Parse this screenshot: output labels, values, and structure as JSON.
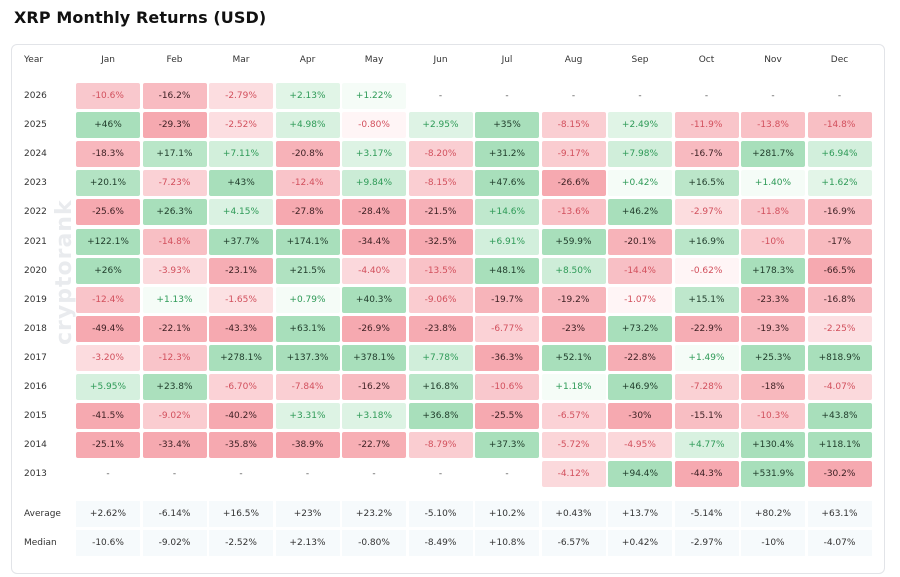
{
  "title": "XRP Monthly Returns (USD)",
  "watermark": "cryptorank",
  "header": {
    "year_label": "Year",
    "months": [
      "Jan",
      "Feb",
      "Mar",
      "Apr",
      "May",
      "Jun",
      "Jul",
      "Aug",
      "Sep",
      "Oct",
      "Nov",
      "Dec"
    ]
  },
  "colors": {
    "pos_strong": "#a8dfbb",
    "pos_weak": "#eaf8ee",
    "neg_strong": "#f6a9b0",
    "neg_weak": "#fde8ea",
    "pos_text": "#2e9a57",
    "neg_text": "#d2505d"
  },
  "chart_data": {
    "type": "heatmap",
    "title": "XRP Monthly Returns (USD)",
    "columns": [
      "Jan",
      "Feb",
      "Mar",
      "Apr",
      "May",
      "Jun",
      "Jul",
      "Aug",
      "Sep",
      "Oct",
      "Nov",
      "Dec"
    ],
    "rows": [
      {
        "year": "2026",
        "values": [
          "-10.6%",
          "-16.2%",
          "-2.79%",
          "+2.13%",
          "+1.22%",
          "-",
          "-",
          "-",
          "-",
          "-",
          "-",
          "-"
        ]
      },
      {
        "year": "2025",
        "values": [
          "+46%",
          "-29.3%",
          "-2.52%",
          "+4.98%",
          "-0.80%",
          "+2.95%",
          "+35%",
          "-8.15%",
          "+2.49%",
          "-11.9%",
          "-13.8%",
          "-14.8%"
        ]
      },
      {
        "year": "2024",
        "values": [
          "-18.3%",
          "+17.1%",
          "+7.11%",
          "-20.8%",
          "+3.17%",
          "-8.20%",
          "+31.2%",
          "-9.17%",
          "+7.98%",
          "-16.7%",
          "+281.7%",
          "+6.94%"
        ]
      },
      {
        "year": "2023",
        "values": [
          "+20.1%",
          "-7.23%",
          "+43%",
          "-12.4%",
          "+9.84%",
          "-8.15%",
          "+47.6%",
          "-26.6%",
          "+0.42%",
          "+16.5%",
          "+1.40%",
          "+1.62%"
        ]
      },
      {
        "year": "2022",
        "values": [
          "-25.6%",
          "+26.3%",
          "+4.15%",
          "-27.8%",
          "-28.4%",
          "-21.5%",
          "+14.6%",
          "-13.6%",
          "+46.2%",
          "-2.97%",
          "-11.8%",
          "-16.9%"
        ]
      },
      {
        "year": "2021",
        "values": [
          "+122.1%",
          "-14.8%",
          "+37.7%",
          "+174.1%",
          "-34.4%",
          "-32.5%",
          "+6.91%",
          "+59.9%",
          "-20.1%",
          "+16.9%",
          "-10%",
          "-17%"
        ]
      },
      {
        "year": "2020",
        "values": [
          "+26%",
          "-3.93%",
          "-23.1%",
          "+21.5%",
          "-4.40%",
          "-13.5%",
          "+48.1%",
          "+8.50%",
          "-14.4%",
          "-0.62%",
          "+178.3%",
          "-66.5%"
        ]
      },
      {
        "year": "2019",
        "values": [
          "-12.4%",
          "+1.13%",
          "-1.65%",
          "+0.79%",
          "+40.3%",
          "-9.06%",
          "-19.7%",
          "-19.2%",
          "-1.07%",
          "+15.1%",
          "-23.3%",
          "-16.8%"
        ]
      },
      {
        "year": "2018",
        "values": [
          "-49.4%",
          "-22.1%",
          "-43.3%",
          "+63.1%",
          "-26.9%",
          "-23.8%",
          "-6.77%",
          "-23%",
          "+73.2%",
          "-22.9%",
          "-19.3%",
          "-2.25%"
        ]
      },
      {
        "year": "2017",
        "values": [
          "-3.20%",
          "-12.3%",
          "+278.1%",
          "+137.3%",
          "+378.1%",
          "+7.78%",
          "-36.3%",
          "+52.1%",
          "-22.8%",
          "+1.49%",
          "+25.3%",
          "+818.9%"
        ]
      },
      {
        "year": "2016",
        "values": [
          "+5.95%",
          "+23.8%",
          "-6.70%",
          "-7.84%",
          "-16.2%",
          "+16.8%",
          "-10.6%",
          "+1.18%",
          "+46.9%",
          "-7.28%",
          "-18%",
          "-4.07%"
        ]
      },
      {
        "year": "2015",
        "values": [
          "-41.5%",
          "-9.02%",
          "-40.2%",
          "+3.31%",
          "+3.18%",
          "+36.8%",
          "-25.5%",
          "-6.57%",
          "-30%",
          "-15.1%",
          "-10.3%",
          "+43.8%"
        ]
      },
      {
        "year": "2014",
        "values": [
          "-25.1%",
          "-33.4%",
          "-35.8%",
          "-38.9%",
          "-22.7%",
          "-8.79%",
          "+37.3%",
          "-5.72%",
          "-4.95%",
          "+4.77%",
          "+130.4%",
          "+118.1%"
        ]
      },
      {
        "year": "2013",
        "values": [
          "-",
          "-",
          "-",
          "-",
          "-",
          "-",
          "-",
          "-4.12%",
          "+94.4%",
          "-44.3%",
          "+531.9%",
          "-30.2%"
        ]
      }
    ],
    "summary": [
      {
        "label": "Average",
        "values": [
          "+2.62%",
          "-6.14%",
          "+16.5%",
          "+23%",
          "+23.2%",
          "-5.10%",
          "+10.2%",
          "+0.43%",
          "+13.7%",
          "-5.14%",
          "+80.2%",
          "+63.1%"
        ]
      },
      {
        "label": "Median",
        "values": [
          "-10.6%",
          "-9.02%",
          "-2.52%",
          "+2.13%",
          "-0.80%",
          "-8.49%",
          "+10.8%",
          "-6.57%",
          "+0.42%",
          "-2.97%",
          "-10%",
          "-4.07%"
        ]
      }
    ]
  }
}
